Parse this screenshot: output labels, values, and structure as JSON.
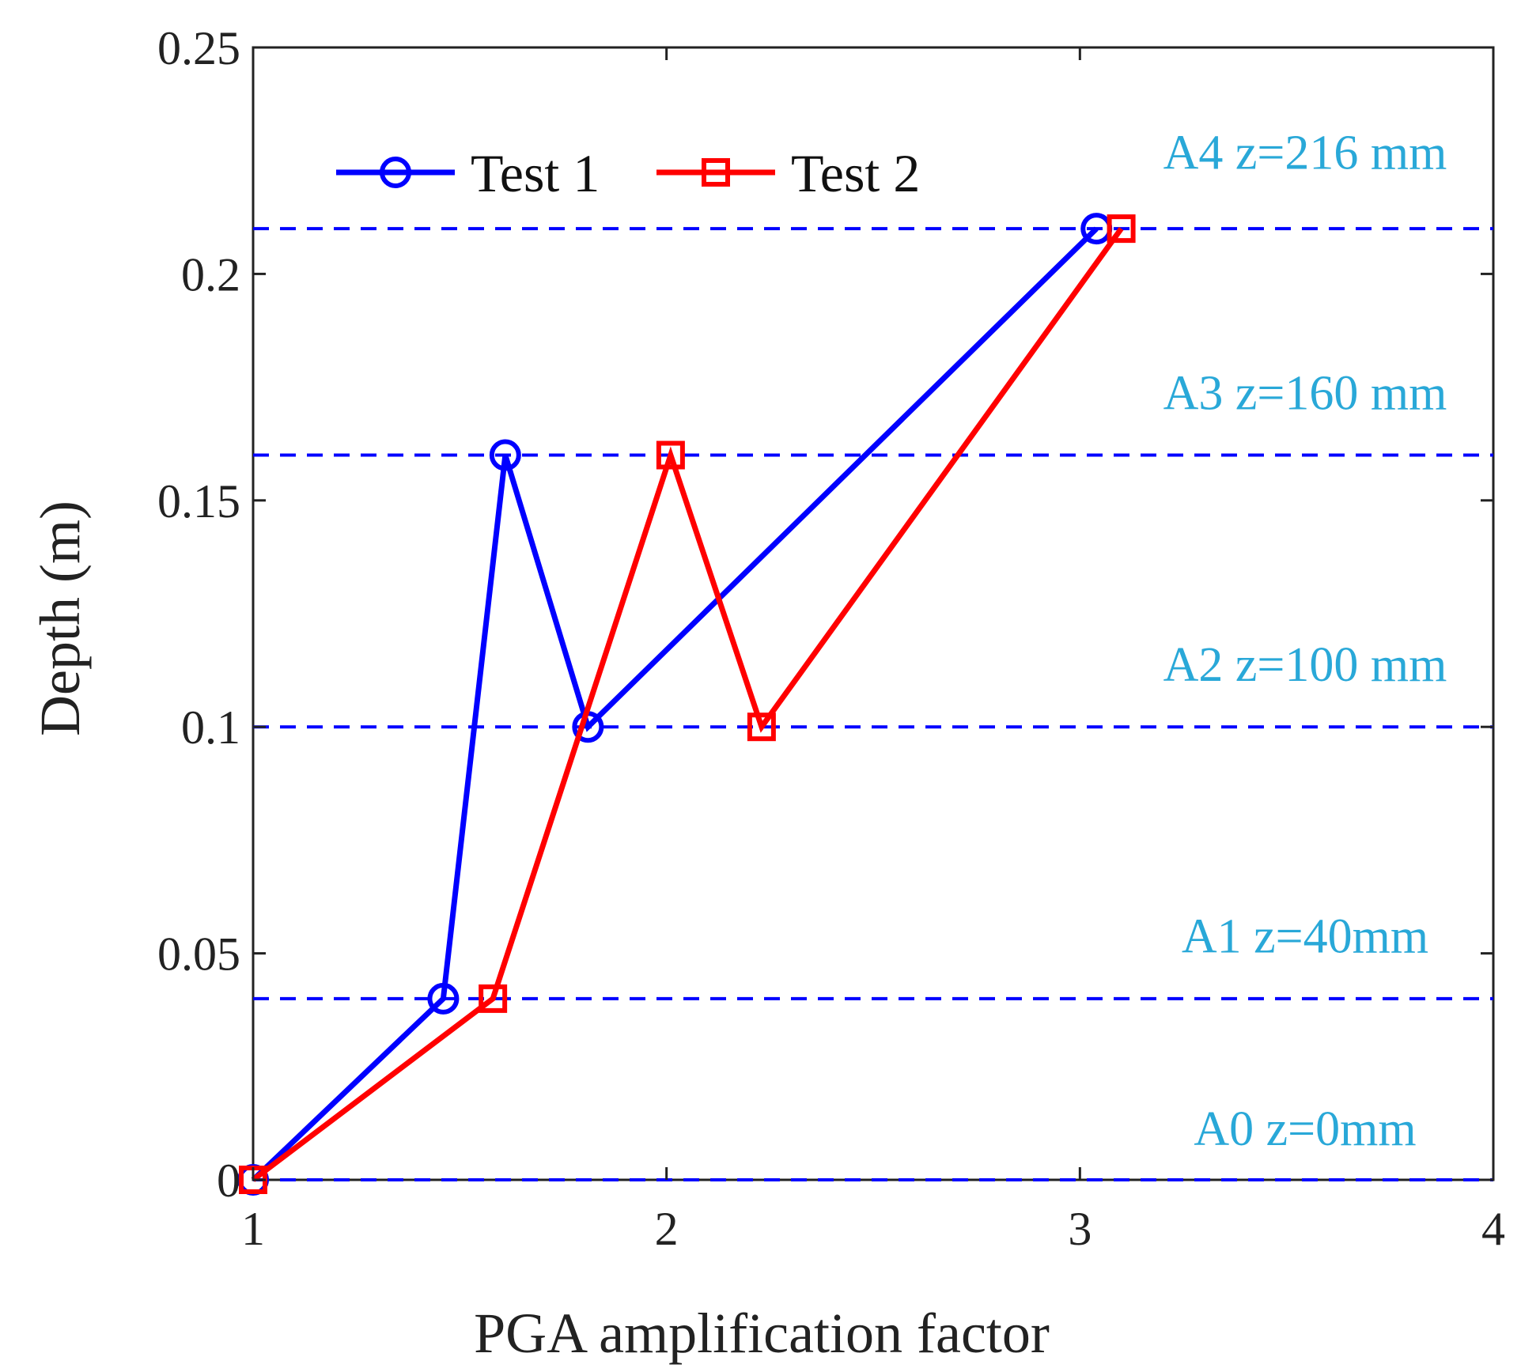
{
  "chart_data": {
    "type": "line",
    "xlabel": "PGA amplification factor",
    "ylabel": "Depth (m)",
    "xlim": [
      1,
      4
    ],
    "ylim": [
      0,
      0.25
    ],
    "xticks": [
      1,
      2,
      3,
      4
    ],
    "xtick_labels": [
      "1",
      "2",
      "3",
      "4"
    ],
    "yticks": [
      0,
      0.05,
      0.1,
      0.15,
      0.2,
      0.25
    ],
    "ytick_labels": [
      "0",
      "0.05",
      "0.1",
      "0.15",
      "0.2",
      "0.25"
    ],
    "grid": false,
    "legend_position": "top-left",
    "series": [
      {
        "name": "Test 1",
        "color": "#0000ff",
        "marker": "circle",
        "x": [
          1.0,
          1.46,
          1.61,
          1.81,
          3.04
        ],
        "y": [
          0.0,
          0.04,
          0.16,
          0.1,
          0.21
        ]
      },
      {
        "name": "Test 2",
        "color": "#ff0000",
        "marker": "square",
        "x": [
          1.0,
          1.58,
          2.01,
          2.23,
          3.1
        ],
        "y": [
          0.0,
          0.04,
          0.16,
          0.1,
          0.21
        ]
      }
    ],
    "reference_lines": {
      "color": "#0000ff",
      "style": "dashed",
      "y": [
        0.0,
        0.04,
        0.1,
        0.16,
        0.21
      ]
    },
    "annotations": [
      {
        "text": "A4 z=216 mm",
        "y": 0.227
      },
      {
        "text": "A3 z=160 mm",
        "y": 0.174
      },
      {
        "text": "A2 z=100 mm",
        "y": 0.114
      },
      {
        "text": "A1 z=40mm",
        "y": 0.054
      },
      {
        "text": "A0 z=0mm",
        "y": 0.0115
      }
    ],
    "annotation_color": "#29a8d8",
    "axis_color": "#222222"
  }
}
